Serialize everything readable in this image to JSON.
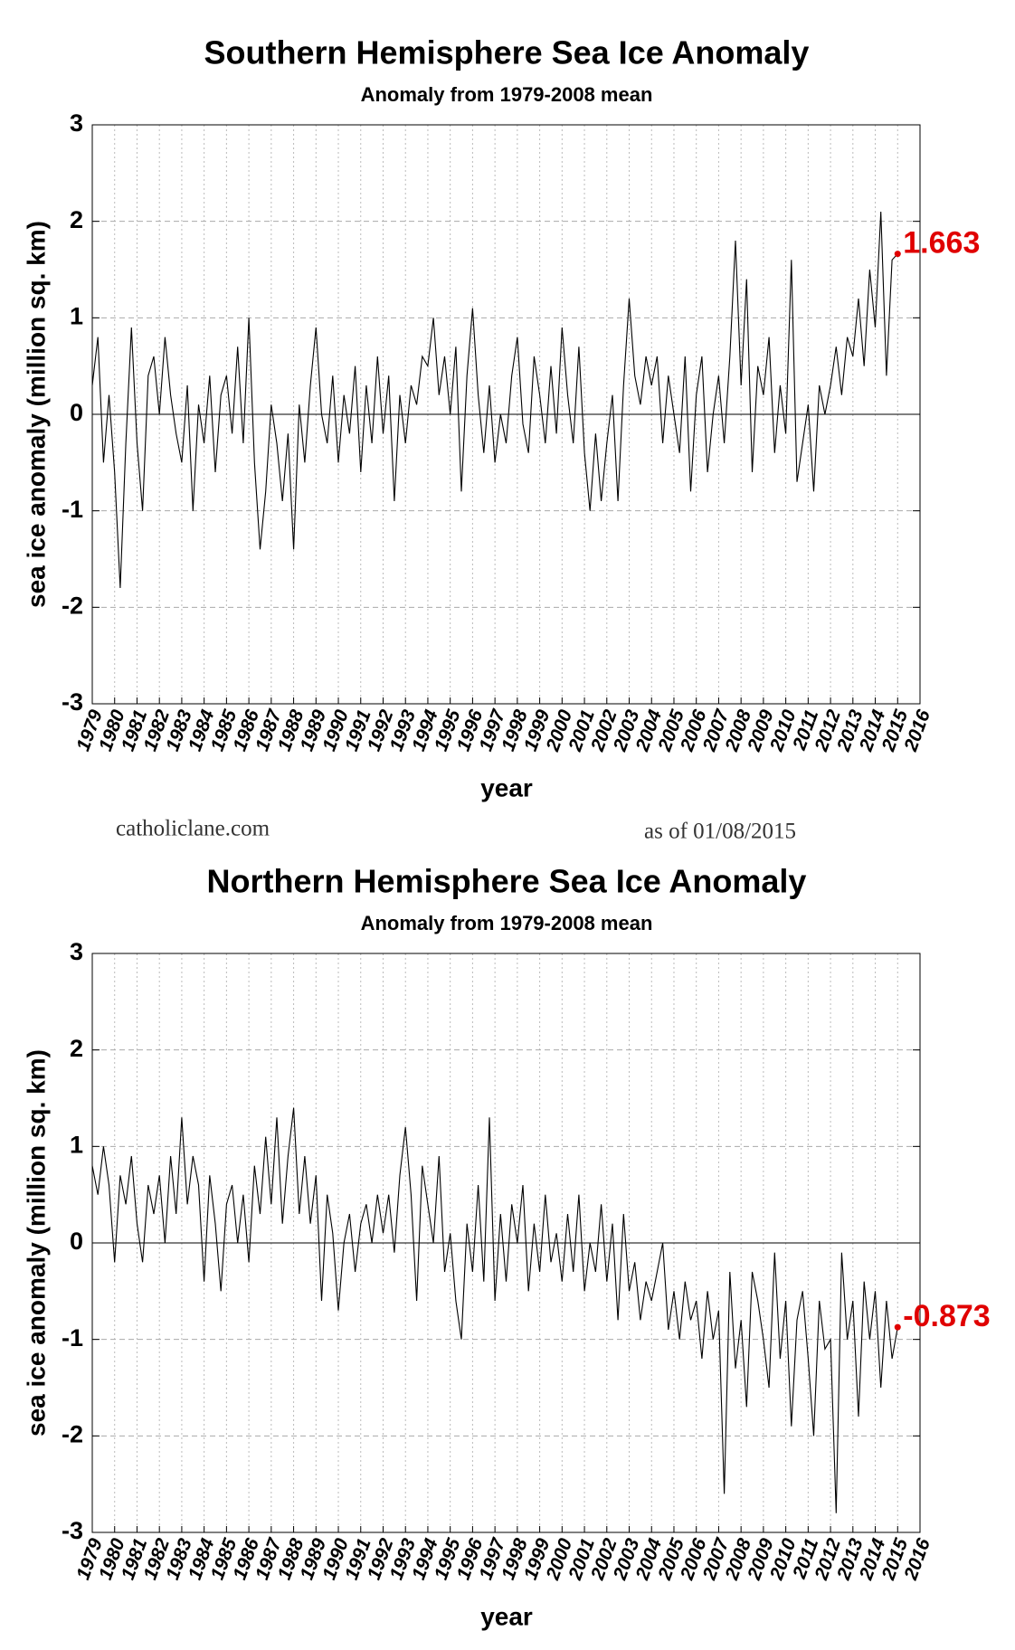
{
  "chart_data": [
    {
      "type": "line",
      "title": "Southern Hemisphere Sea Ice Anomaly",
      "subtitle": "Anomaly from 1979-2008 mean",
      "ylabel": "sea ice anomaly (million sq. km)",
      "xlabel": "year",
      "color": "#000000",
      "grid": true,
      "xlim": [
        1979,
        2016
      ],
      "ylim": [
        -3,
        3
      ],
      "xticks": [
        1979,
        1980,
        1981,
        1982,
        1983,
        1984,
        1985,
        1986,
        1987,
        1988,
        1989,
        1990,
        1991,
        1992,
        1993,
        1994,
        1995,
        1996,
        1997,
        1998,
        1999,
        2000,
        2001,
        2002,
        2003,
        2004,
        2005,
        2006,
        2007,
        2008,
        2009,
        2010,
        2011,
        2012,
        2013,
        2014,
        2015,
        2016
      ],
      "yticks": [
        -3,
        -2,
        -1,
        0,
        1,
        2,
        3
      ],
      "x": [
        1979,
        1979.25,
        1979.5,
        1979.75,
        1980,
        1980.25,
        1980.5,
        1980.75,
        1981,
        1981.25,
        1981.5,
        1981.75,
        1982,
        1982.25,
        1982.5,
        1982.75,
        1983,
        1983.25,
        1983.5,
        1983.75,
        1984,
        1984.25,
        1984.5,
        1984.75,
        1985,
        1985.25,
        1985.5,
        1985.75,
        1986,
        1986.25,
        1986.5,
        1986.75,
        1987,
        1987.25,
        1987.5,
        1987.75,
        1988,
        1988.25,
        1988.5,
        1988.75,
        1989,
        1989.25,
        1989.5,
        1989.75,
        1990,
        1990.25,
        1990.5,
        1990.75,
        1991,
        1991.25,
        1991.5,
        1991.75,
        1992,
        1992.25,
        1992.5,
        1992.75,
        1993,
        1993.25,
        1993.5,
        1993.75,
        1994,
        1994.25,
        1994.5,
        1994.75,
        1995,
        1995.25,
        1995.5,
        1995.75,
        1996,
        1996.25,
        1996.5,
        1996.75,
        1997,
        1997.25,
        1997.5,
        1997.75,
        1998,
        1998.25,
        1998.5,
        1998.75,
        1999,
        1999.25,
        1999.5,
        1999.75,
        2000,
        2000.25,
        2000.5,
        2000.75,
        2001,
        2001.25,
        2001.5,
        2001.75,
        2002,
        2002.25,
        2002.5,
        2002.75,
        2003,
        2003.25,
        2003.5,
        2003.75,
        2004,
        2004.25,
        2004.5,
        2004.75,
        2005,
        2005.25,
        2005.5,
        2005.75,
        2006,
        2006.25,
        2006.5,
        2006.75,
        2007,
        2007.25,
        2007.5,
        2007.75,
        2008,
        2008.25,
        2008.5,
        2008.75,
        2009,
        2009.25,
        2009.5,
        2009.75,
        2010,
        2010.25,
        2010.5,
        2010.75,
        2011,
        2011.25,
        2011.5,
        2011.75,
        2012,
        2012.25,
        2012.5,
        2012.75,
        2013,
        2013.25,
        2013.5,
        2013.75,
        2014,
        2014.25,
        2014.5,
        2014.75,
        2015
      ],
      "values": [
        0.3,
        0.8,
        -0.5,
        0.2,
        -0.6,
        -1.8,
        -0.3,
        0.9,
        -0.3,
        -1.0,
        0.4,
        0.6,
        0.0,
        0.8,
        0.2,
        -0.2,
        -0.5,
        0.3,
        -1.0,
        0.1,
        -0.3,
        0.4,
        -0.6,
        0.2,
        0.4,
        -0.2,
        0.7,
        -0.3,
        1.0,
        -0.5,
        -1.4,
        -0.8,
        0.1,
        -0.3,
        -0.9,
        -0.2,
        -1.4,
        0.1,
        -0.5,
        0.3,
        0.9,
        0.0,
        -0.3,
        0.4,
        -0.5,
        0.2,
        -0.2,
        0.5,
        -0.6,
        0.3,
        -0.3,
        0.6,
        -0.2,
        0.4,
        -0.9,
        0.2,
        -0.3,
        0.3,
        0.1,
        0.6,
        0.5,
        1.0,
        0.2,
        0.6,
        0.0,
        0.7,
        -0.8,
        0.4,
        1.1,
        0.2,
        -0.4,
        0.3,
        -0.5,
        0.0,
        -0.3,
        0.4,
        0.8,
        -0.1,
        -0.4,
        0.6,
        0.2,
        -0.3,
        0.5,
        -0.2,
        0.9,
        0.2,
        -0.3,
        0.7,
        -0.4,
        -1.0,
        -0.2,
        -0.9,
        -0.3,
        0.2,
        -0.9,
        0.3,
        1.2,
        0.4,
        0.1,
        0.6,
        0.3,
        0.6,
        -0.3,
        0.4,
        0.0,
        -0.4,
        0.6,
        -0.8,
        0.2,
        0.6,
        -0.6,
        0.0,
        0.4,
        -0.3,
        0.6,
        1.8,
        0.3,
        1.4,
        -0.6,
        0.5,
        0.2,
        0.8,
        -0.4,
        0.3,
        -0.2,
        1.6,
        -0.7,
        -0.3,
        0.1,
        -0.8,
        0.3,
        0.0,
        0.3,
        0.7,
        0.2,
        0.8,
        0.6,
        1.2,
        0.5,
        1.5,
        0.9,
        2.1,
        0.4,
        1.6,
        1.663
      ],
      "annotation": "1.663",
      "annotation_color": "#e00000"
    },
    {
      "type": "line",
      "title": "Northern Hemisphere Sea Ice Anomaly",
      "subtitle": "Anomaly from 1979-2008 mean",
      "ylabel": "sea ice anomaly (million sq. km)",
      "xlabel": "year",
      "color": "#000000",
      "grid": true,
      "xlim": [
        1979,
        2016
      ],
      "ylim": [
        -3,
        3
      ],
      "xticks": [
        1979,
        1980,
        1981,
        1982,
        1983,
        1984,
        1985,
        1986,
        1987,
        1988,
        1989,
        1990,
        1991,
        1992,
        1993,
        1994,
        1995,
        1996,
        1997,
        1998,
        1999,
        2000,
        2001,
        2002,
        2003,
        2004,
        2005,
        2006,
        2007,
        2008,
        2009,
        2010,
        2011,
        2012,
        2013,
        2014,
        2015,
        2016
      ],
      "yticks": [
        -3,
        -2,
        -1,
        0,
        1,
        2,
        3
      ],
      "x": [
        1979,
        1979.25,
        1979.5,
        1979.75,
        1980,
        1980.25,
        1980.5,
        1980.75,
        1981,
        1981.25,
        1981.5,
        1981.75,
        1982,
        1982.25,
        1982.5,
        1982.75,
        1983,
        1983.25,
        1983.5,
        1983.75,
        1984,
        1984.25,
        1984.5,
        1984.75,
        1985,
        1985.25,
        1985.5,
        1985.75,
        1986,
        1986.25,
        1986.5,
        1986.75,
        1987,
        1987.25,
        1987.5,
        1987.75,
        1988,
        1988.25,
        1988.5,
        1988.75,
        1989,
        1989.25,
        1989.5,
        1989.75,
        1990,
        1990.25,
        1990.5,
        1990.75,
        1991,
        1991.25,
        1991.5,
        1991.75,
        1992,
        1992.25,
        1992.5,
        1992.75,
        1993,
        1993.25,
        1993.5,
        1993.75,
        1994,
        1994.25,
        1994.5,
        1994.75,
        1995,
        1995.25,
        1995.5,
        1995.75,
        1996,
        1996.25,
        1996.5,
        1996.75,
        1997,
        1997.25,
        1997.5,
        1997.75,
        1998,
        1998.25,
        1998.5,
        1998.75,
        1999,
        1999.25,
        1999.5,
        1999.75,
        2000,
        2000.25,
        2000.5,
        2000.75,
        2001,
        2001.25,
        2001.5,
        2001.75,
        2002,
        2002.25,
        2002.5,
        2002.75,
        2003,
        2003.25,
        2003.5,
        2003.75,
        2004,
        2004.25,
        2004.5,
        2004.75,
        2005,
        2005.25,
        2005.5,
        2005.75,
        2006,
        2006.25,
        2006.5,
        2006.75,
        2007,
        2007.25,
        2007.5,
        2007.75,
        2008,
        2008.25,
        2008.5,
        2008.75,
        2009,
        2009.25,
        2009.5,
        2009.75,
        2010,
        2010.25,
        2010.5,
        2010.75,
        2011,
        2011.25,
        2011.5,
        2011.75,
        2012,
        2012.25,
        2012.5,
        2012.75,
        2013,
        2013.25,
        2013.5,
        2013.75,
        2014,
        2014.25,
        2014.5,
        2014.75,
        2015
      ],
      "values": [
        0.8,
        0.5,
        1.0,
        0.6,
        -0.2,
        0.7,
        0.4,
        0.9,
        0.2,
        -0.2,
        0.6,
        0.3,
        0.7,
        0.0,
        0.9,
        0.3,
        1.3,
        0.4,
        0.9,
        0.6,
        -0.4,
        0.7,
        0.2,
        -0.5,
        0.4,
        0.6,
        0.0,
        0.5,
        -0.2,
        0.8,
        0.3,
        1.1,
        0.4,
        1.3,
        0.2,
        0.9,
        1.4,
        0.3,
        0.9,
        0.2,
        0.7,
        -0.6,
        0.5,
        0.1,
        -0.7,
        0.0,
        0.3,
        -0.3,
        0.2,
        0.4,
        0.0,
        0.5,
        0.1,
        0.5,
        -0.1,
        0.7,
        1.2,
        0.5,
        -0.6,
        0.8,
        0.4,
        0.0,
        0.9,
        -0.3,
        0.1,
        -0.6,
        -1.0,
        0.2,
        -0.3,
        0.6,
        -0.4,
        1.3,
        -0.6,
        0.3,
        -0.4,
        0.4,
        0.0,
        0.6,
        -0.5,
        0.2,
        -0.3,
        0.5,
        -0.2,
        0.1,
        -0.4,
        0.3,
        -0.3,
        0.5,
        -0.5,
        0.0,
        -0.3,
        0.4,
        -0.4,
        0.2,
        -0.8,
        0.3,
        -0.5,
        -0.2,
        -0.8,
        -0.4,
        -0.6,
        -0.3,
        0.0,
        -0.9,
        -0.5,
        -1.0,
        -0.4,
        -0.8,
        -0.6,
        -1.2,
        -0.5,
        -1.0,
        -0.7,
        -2.6,
        -0.3,
        -1.3,
        -0.8,
        -1.7,
        -0.3,
        -0.6,
        -1.0,
        -1.5,
        -0.1,
        -1.2,
        -0.6,
        -1.9,
        -0.8,
        -0.5,
        -1.2,
        -2.0,
        -0.6,
        -1.1,
        -1.0,
        -2.8,
        -0.1,
        -1.0,
        -0.6,
        -1.8,
        -0.4,
        -1.0,
        -0.5,
        -1.5,
        -0.6,
        -1.2,
        -0.873
      ],
      "annotation": "-0.873",
      "annotation_color": "#e00000"
    }
  ],
  "watermark": {
    "site": "catholiclane.com",
    "date": "as of 01/08/2015"
  }
}
